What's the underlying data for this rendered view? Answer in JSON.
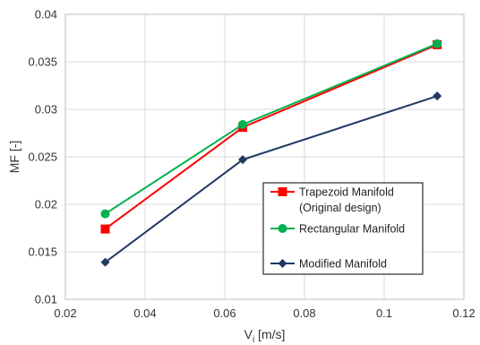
{
  "chart_data": {
    "type": "line",
    "xlabel": "V",
    "xlabel_sub": "i",
    "xlabel_unit": " [m/s]",
    "ylabel": "MF [-]",
    "xlim": [
      0.02,
      0.12
    ],
    "ylim": [
      0.01,
      0.04
    ],
    "xticks": [
      0.02,
      0.04,
      0.06,
      0.08,
      0.1,
      0.12
    ],
    "xtick_labels": [
      "0.02",
      "0.04",
      "0.06",
      "0.08",
      "0.1",
      "0.12"
    ],
    "yticks": [
      0.01,
      0.015,
      0.02,
      0.025,
      0.03,
      0.035,
      0.04
    ],
    "ytick_labels": [
      "0.01",
      "0.015",
      "0.02",
      "0.025",
      "0.03",
      "0.035",
      "0.04"
    ],
    "grid": true,
    "legend_position": "lower-right",
    "series": [
      {
        "name": "Trapezoid Manifold",
        "name_line2": "(Original design)",
        "color": "#ff0000",
        "marker": "square",
        "x": [
          0.03,
          0.0645,
          0.1133
        ],
        "y": [
          0.0174,
          0.0281,
          0.0368
        ]
      },
      {
        "name": "Rectangular Manifold",
        "color": "#00b050",
        "marker": "circle",
        "x": [
          0.03,
          0.0645,
          0.1133
        ],
        "y": [
          0.019,
          0.0284,
          0.0369
        ]
      },
      {
        "name": "Modified Manifold",
        "color": "#1f3864",
        "marker": "diamond",
        "x": [
          0.03,
          0.0645,
          0.1133
        ],
        "y": [
          0.0139,
          0.0247,
          0.0314
        ]
      }
    ]
  }
}
